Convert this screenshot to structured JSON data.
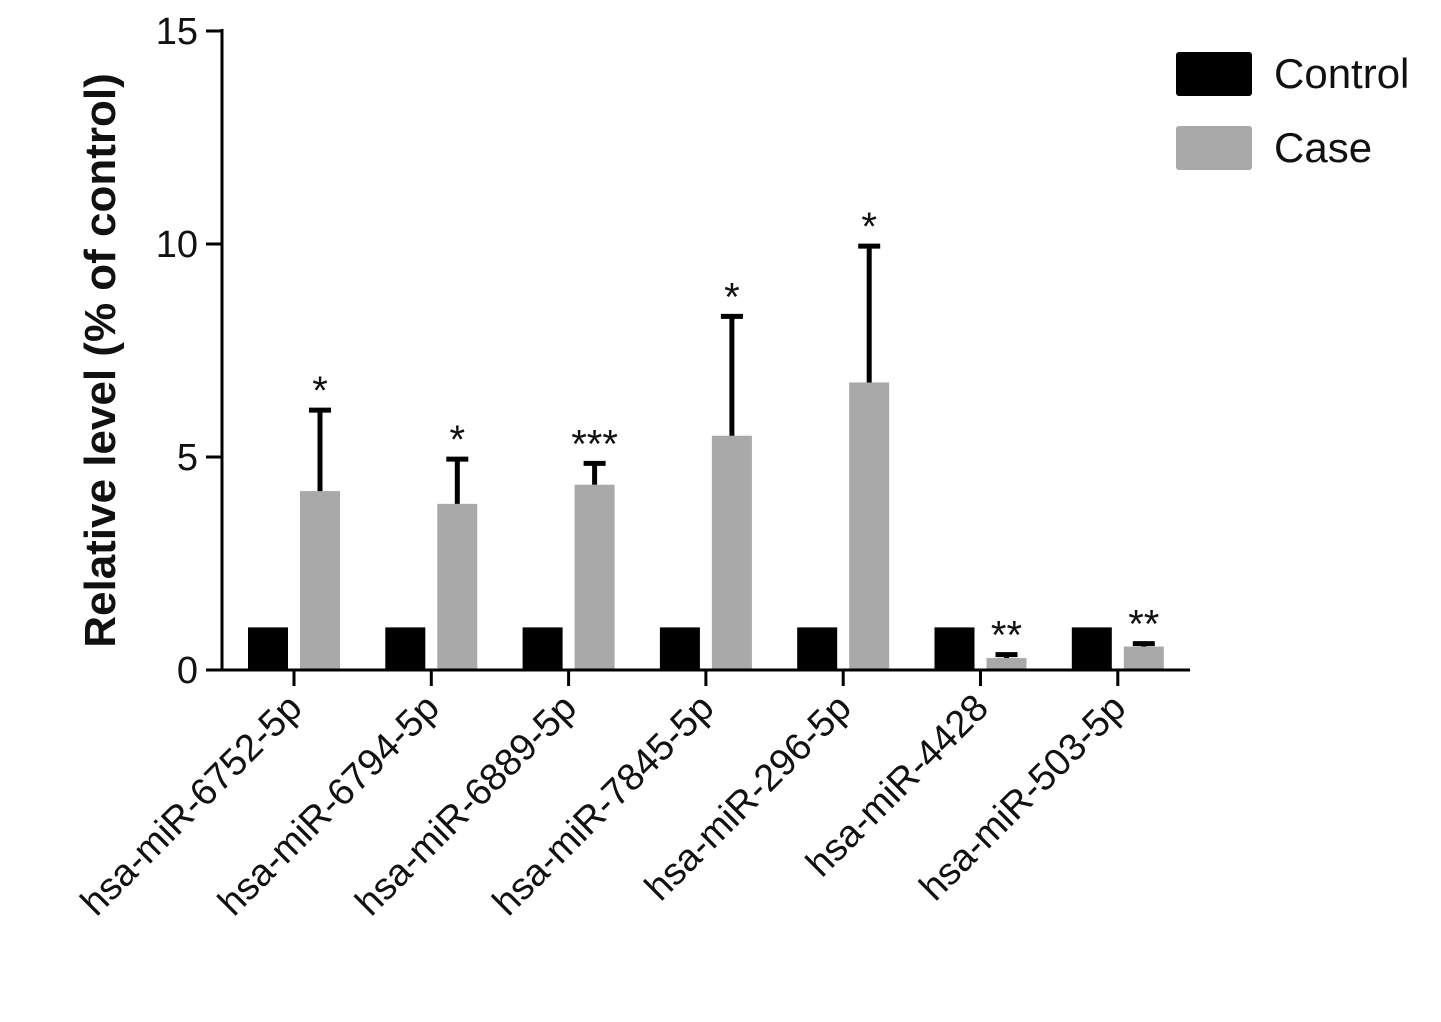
{
  "chart_data": {
    "type": "bar",
    "ylabel": "Relative level (% of control)",
    "ylim": [
      0,
      15
    ],
    "yticks": [
      0,
      5,
      10,
      15
    ],
    "categories": [
      "hsa-miR-6752-5p",
      "hsa-miR-6794-5p",
      "hsa-miR-6889-5p",
      "hsa-miR-7845-5p",
      "hsa-miR-296-5p",
      "hsa-miR-4428",
      "hsa-miR-503-5p"
    ],
    "series": [
      {
        "name": "Control",
        "color": "#000000",
        "values": [
          1,
          1,
          1,
          1,
          1,
          1,
          1
        ]
      },
      {
        "name": "Case",
        "color": "#a9a9a9",
        "values": [
          4.2,
          3.9,
          4.35,
          5.5,
          6.75,
          0.28,
          0.55
        ],
        "error": [
          1.9,
          1.05,
          0.5,
          2.8,
          3.2,
          0.08,
          0.07
        ],
        "significance": [
          "*",
          "*",
          "***",
          "*",
          "*",
          "**",
          "**"
        ]
      }
    ],
    "legend": {
      "position": "top-right"
    }
  }
}
